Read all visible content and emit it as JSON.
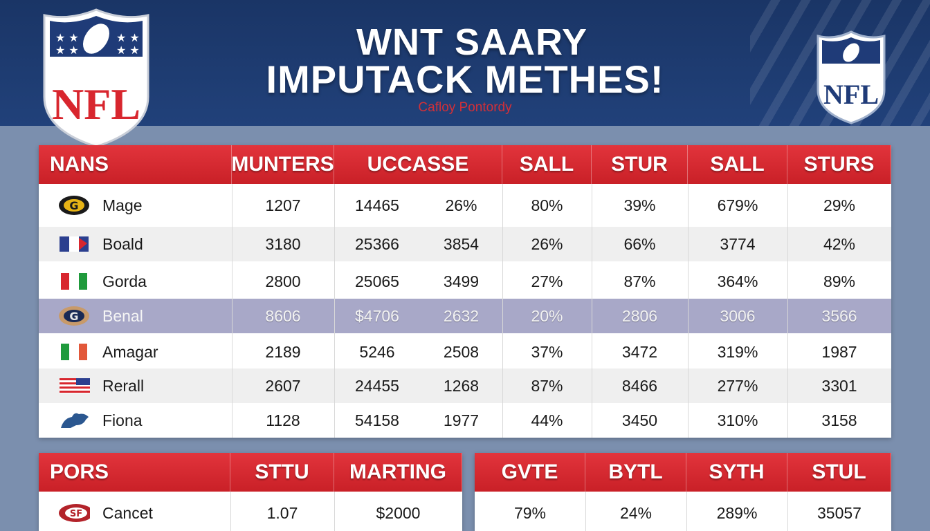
{
  "header": {
    "title_line1": "WNT SAARY",
    "title_line2": "IMPUTACK METHES!",
    "subtitle": "Cafloy Pontordy",
    "logo_text": "NFL"
  },
  "colors": {
    "header_bg": "#1a3566",
    "accent_red": "#d8262e",
    "page_bg": "#7b8fae"
  },
  "main_table": {
    "columns": [
      "NANS",
      "MUNTERS",
      "UCCASSE",
      "SALL",
      "STUR",
      "SALL",
      "STURS"
    ],
    "rows": [
      {
        "icon": "helmet-icon",
        "name": "Mage",
        "values": [
          "1207",
          "14465",
          "26%",
          "80%",
          "39%",
          "679%",
          "29%"
        ]
      },
      {
        "icon": "flag-icon",
        "name": "Boald",
        "values": [
          "3180",
          "25366",
          "3854",
          "26%",
          "66%",
          "3774",
          "42%"
        ]
      },
      {
        "icon": "flag-icon",
        "name": "Gorda",
        "values": [
          "2800",
          "25065",
          "3499",
          "27%",
          "87%",
          "364%",
          "89%"
        ]
      },
      {
        "icon": "helmet-icon",
        "name": "Benal",
        "values": [
          "8606",
          "$4706",
          "2632",
          "20%",
          "2806",
          "3006",
          "3566"
        ]
      },
      {
        "icon": "flag-icon",
        "name": "Amagar",
        "values": [
          "2189",
          "5246",
          "2508",
          "37%",
          "3472",
          "319%",
          "1987"
        ]
      },
      {
        "icon": "flag-icon",
        "name": "Rerall",
        "values": [
          "2607",
          "24455",
          "1268",
          "87%",
          "8466",
          "277%",
          "3301"
        ]
      },
      {
        "icon": "bull-icon",
        "name": "Fiona",
        "values": [
          "1128",
          "54158",
          "1977",
          "44%",
          "3450",
          "310%",
          "3158"
        ]
      }
    ]
  },
  "bottom_left_table": {
    "columns": [
      "PORS",
      "STTU",
      "MARTING"
    ],
    "rows": [
      {
        "icon": "helmet-icon",
        "name": "Cancet",
        "values": [
          "1.07",
          "$2000"
        ]
      }
    ]
  },
  "bottom_right_table": {
    "columns": [
      "GVTE",
      "BYTL",
      "SYTH",
      "STUL"
    ],
    "rows": [
      {
        "values": [
          "79%",
          "24%",
          "289%",
          "35057"
        ]
      }
    ]
  }
}
